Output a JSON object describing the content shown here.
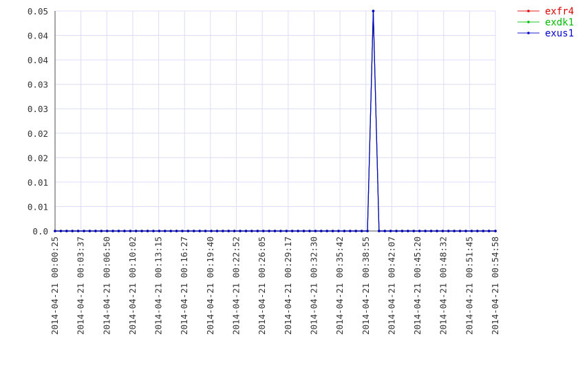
{
  "chart_data": {
    "type": "line",
    "title": "",
    "xlabel": "",
    "ylabel": "",
    "ylim": [
      0,
      0.05
    ],
    "grid": true,
    "legend_position": "top-right, outside plot",
    "y_tick_labels": [
      "0.0",
      "0.01",
      "0.01",
      "0.02",
      "0.02",
      "0.03",
      "0.03",
      "0.04",
      "0.04",
      "0.05"
    ],
    "x_tick_labels": [
      "2014-04-21 00:00:25",
      "2014-04-21 00:03:37",
      "2014-04-21 00:06:50",
      "2014-04-21 00:10:02",
      "2014-04-21 00:13:15",
      "2014-04-21 00:16:27",
      "2014-04-21 00:19:40",
      "2014-04-21 00:22:52",
      "2014-04-21 00:26:05",
      "2014-04-21 00:29:17",
      "2014-04-21 00:32:30",
      "2014-04-21 00:35:42",
      "2014-04-21 00:38:55",
      "2014-04-21 00:42:07",
      "2014-04-21 00:45:20",
      "2014-04-21 00:48:32",
      "2014-04-21 00:51:45",
      "2014-04-21 00:54:58"
    ],
    "x": [
      "2014-04-21 00:00:25",
      "2014-04-21 00:01:08",
      "2014-04-21 00:01:51",
      "2014-04-21 00:02:34",
      "2014-04-21 00:03:17",
      "2014-04-21 00:04:00",
      "2014-04-21 00:04:43",
      "2014-04-21 00:05:26",
      "2014-04-21 00:06:09",
      "2014-04-21 00:06:52",
      "2014-04-21 00:07:35",
      "2014-04-21 00:08:18",
      "2014-04-21 00:09:01",
      "2014-04-21 00:09:44",
      "2014-04-21 00:10:27",
      "2014-04-21 00:11:10",
      "2014-04-21 00:11:53",
      "2014-04-21 00:12:36",
      "2014-04-21 00:13:19",
      "2014-04-21 00:14:02",
      "2014-04-21 00:14:45",
      "2014-04-21 00:15:28",
      "2014-04-21 00:16:11",
      "2014-04-21 00:16:54",
      "2014-04-21 00:17:37",
      "2014-04-21 00:18:20",
      "2014-04-21 00:19:03",
      "2014-04-21 00:19:46",
      "2014-04-21 00:20:29",
      "2014-04-21 00:21:12",
      "2014-04-21 00:21:55",
      "2014-04-21 00:22:38",
      "2014-04-21 00:23:21",
      "2014-04-21 00:24:04",
      "2014-04-21 00:24:47",
      "2014-04-21 00:25:30",
      "2014-04-21 00:26:13",
      "2014-04-21 00:26:56",
      "2014-04-21 00:27:39",
      "2014-04-21 00:28:22",
      "2014-04-21 00:29:05",
      "2014-04-21 00:29:48",
      "2014-04-21 00:30:31",
      "2014-04-21 00:31:14",
      "2014-04-21 00:31:57",
      "2014-04-21 00:32:40",
      "2014-04-21 00:33:23",
      "2014-04-21 00:34:06",
      "2014-04-21 00:34:49",
      "2014-04-21 00:35:32",
      "2014-04-21 00:36:15",
      "2014-04-21 00:36:58",
      "2014-04-21 00:37:41",
      "2014-04-21 00:38:24",
      "2014-04-21 00:39:07",
      "2014-04-21 00:39:50",
      "2014-04-21 00:40:33",
      "2014-04-21 00:41:16",
      "2014-04-21 00:41:59",
      "2014-04-21 00:42:42",
      "2014-04-21 00:43:25",
      "2014-04-21 00:44:08",
      "2014-04-21 00:44:51",
      "2014-04-21 00:45:34",
      "2014-04-21 00:46:17",
      "2014-04-21 00:47:00",
      "2014-04-21 00:47:43",
      "2014-04-21 00:48:26",
      "2014-04-21 00:49:09",
      "2014-04-21 00:49:52",
      "2014-04-21 00:50:35",
      "2014-04-21 00:51:18",
      "2014-04-21 00:52:01",
      "2014-04-21 00:52:44",
      "2014-04-21 00:53:27",
      "2014-04-21 00:54:10",
      "2014-04-21 00:54:58"
    ],
    "series": [
      {
        "name": "exfr4",
        "color": "#dd0000",
        "values": [
          0,
          0,
          0,
          0,
          0,
          0,
          0,
          0,
          0,
          0,
          0,
          0,
          0,
          0,
          0,
          0,
          0,
          0,
          0,
          0,
          0,
          0,
          0,
          0,
          0,
          0,
          0,
          0,
          0,
          0,
          0,
          0,
          0,
          0,
          0,
          0,
          0,
          0,
          0,
          0,
          0,
          0,
          0,
          0,
          0,
          0,
          0,
          0,
          0,
          0,
          0,
          0,
          0,
          0,
          0,
          0.05,
          0,
          0,
          0,
          0,
          0,
          0,
          0,
          0,
          0,
          0,
          0,
          0,
          0,
          0,
          0,
          0,
          0,
          0,
          0,
          0,
          0
        ]
      },
      {
        "name": "exdk1",
        "color": "#00bb00",
        "values": [
          0,
          0,
          0,
          0,
          0,
          0,
          0,
          0,
          0,
          0,
          0,
          0,
          0,
          0,
          0,
          0,
          0,
          0,
          0,
          0,
          0,
          0,
          0,
          0,
          0,
          0,
          0,
          0,
          0,
          0,
          0,
          0,
          0,
          0,
          0,
          0,
          0,
          0,
          0,
          0,
          0,
          0,
          0,
          0,
          0,
          0,
          0,
          0,
          0,
          0,
          0,
          0,
          0,
          0,
          0,
          0.05,
          0,
          0,
          0,
          0,
          0,
          0,
          0,
          0,
          0,
          0,
          0,
          0,
          0,
          0,
          0,
          0,
          0,
          0,
          0,
          0,
          0
        ]
      },
      {
        "name": "exus1",
        "color": "#0000cc",
        "values": [
          0,
          0,
          0,
          0,
          0,
          0,
          0,
          0,
          0,
          0,
          0,
          0,
          0,
          0,
          0,
          0,
          0,
          0,
          0,
          0,
          0,
          0,
          0,
          0,
          0,
          0,
          0,
          0,
          0,
          0,
          0,
          0,
          0,
          0,
          0,
          0,
          0,
          0,
          0,
          0,
          0,
          0,
          0,
          0,
          0,
          0,
          0,
          0,
          0,
          0,
          0,
          0,
          0,
          0,
          0,
          0.05,
          0,
          0,
          0,
          0,
          0,
          0,
          0,
          0,
          0,
          0,
          0,
          0,
          0,
          0,
          0,
          0,
          0,
          0,
          0,
          0,
          0
        ]
      }
    ]
  }
}
